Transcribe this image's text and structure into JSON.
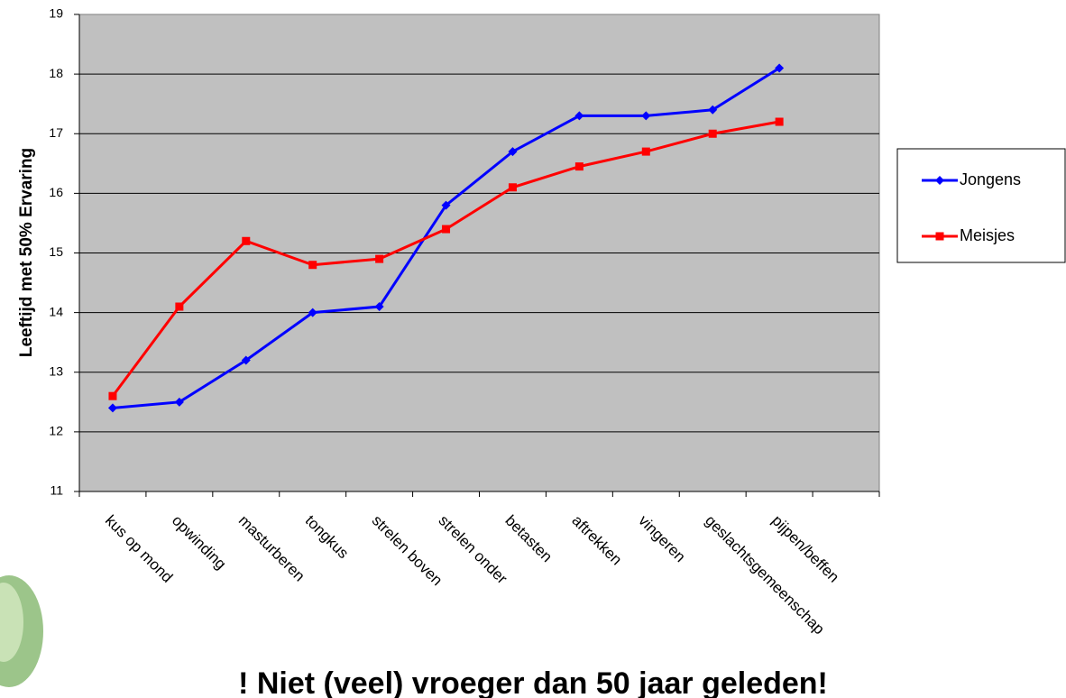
{
  "chart_data": {
    "type": "line",
    "y_label": "Leeftijd met 50% Ervaring",
    "categories": [
      "kus op mond",
      "opwinding",
      "masturberen",
      "tongkus",
      "strelen boven",
      "strelen onder",
      "betasten",
      "aftrekken",
      "vingeren",
      "geslachtsgemeenschap",
      "pijpen/beffen",
      null
    ],
    "series": [
      {
        "name": "Jongens",
        "color": "#0000ff",
        "marker": "diamond",
        "values": [
          12.4,
          12.5,
          13.2,
          14.0,
          14.1,
          15.8,
          16.7,
          17.3,
          17.3,
          17.4,
          18.1,
          null
        ]
      },
      {
        "name": "Meisjes",
        "color": "#ff0000",
        "marker": "square",
        "values": [
          12.6,
          14.1,
          15.2,
          14.8,
          14.9,
          15.4,
          16.1,
          16.45,
          16.7,
          17.0,
          17.2,
          null
        ]
      }
    ],
    "ylim": [
      11,
      19
    ],
    "yticks": [
      11,
      12,
      13,
      14,
      15,
      16,
      17,
      18,
      19
    ],
    "grid": true,
    "legend": "right",
    "annotation": "! Niet (veel) vroeger dan 50 jaar geleden!"
  }
}
